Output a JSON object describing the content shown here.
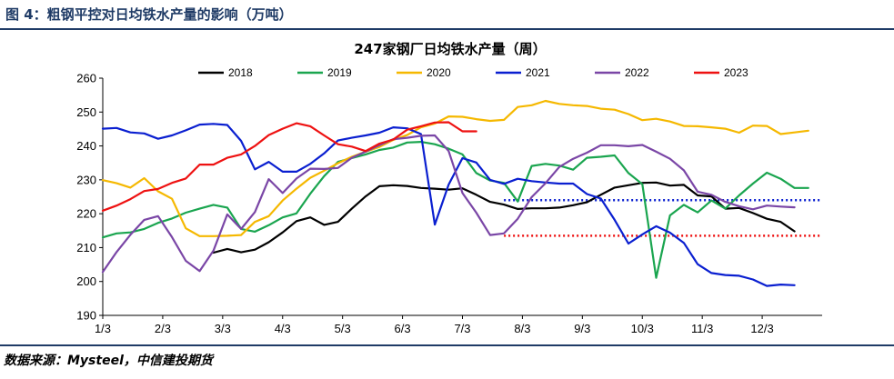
{
  "figure": {
    "title": "图 4：粗钢平控对日均铁水产量的影响（万吨）",
    "source": "数据来源：Mysteel，中信建投期货"
  },
  "chart_data": {
    "type": "line",
    "title": "247家钢厂日均铁水产量（周）",
    "xlabel": "",
    "ylabel": "",
    "x_ticks": [
      "1/3",
      "2/3",
      "3/3",
      "4/3",
      "5/3",
      "6/3",
      "7/3",
      "8/3",
      "9/3",
      "10/3",
      "11/3",
      "12/3"
    ],
    "x_range_week": [
      1,
      53
    ],
    "ylim": [
      190,
      260
    ],
    "y_ticks": [
      190,
      200,
      210,
      220,
      230,
      240,
      250,
      260
    ],
    "grid": false,
    "legend_position": "top",
    "series": [
      {
        "name": "2018",
        "color": "#000000",
        "start_week": 9,
        "values": [
          208.5,
          209.6,
          208.6,
          209.4,
          211.6,
          214.5,
          217.8,
          218.9,
          216.7,
          217.6,
          221.5,
          225.1,
          228.1,
          228.4,
          228.2,
          227.6,
          227.4,
          227.1,
          227.5,
          225.6,
          223.5,
          222.7,
          221.4,
          221.6,
          221.6,
          221.8,
          222.5,
          223.4,
          225.6,
          227.7,
          228.4,
          229.1,
          229.2,
          228.3,
          228.5,
          225.4,
          225.1,
          221.5,
          221.7,
          220.2,
          218.5,
          217.6,
          214.8
        ]
      },
      {
        "name": "2019",
        "color": "#1aa54f",
        "start_week": 1,
        "values": [
          213.0,
          214.2,
          214.5,
          215.5,
          217.3,
          218.6,
          220.3,
          221.5,
          222.6,
          221.8,
          215.5,
          214.7,
          216.6,
          218.9,
          220.1,
          225.9,
          231.1,
          235.3,
          236.4,
          237.5,
          238.8,
          239.5,
          241.0,
          241.2,
          240.5,
          239.2,
          237.5,
          232.0,
          229.8,
          229.1,
          223.6,
          234.1,
          234.7,
          234.2,
          233.0,
          236.5,
          236.8,
          237.2,
          232.0,
          228.7,
          201.1,
          219.5,
          222.6,
          220.4,
          223.9,
          221.5,
          225.4,
          228.9,
          232.1,
          230.3,
          227.6,
          227.6
        ]
      },
      {
        "name": "2020",
        "color": "#f5b800",
        "start_week": 1,
        "values": [
          229.9,
          229.0,
          227.7,
          230.5,
          226.6,
          224.4,
          215.7,
          213.4,
          213.4,
          213.5,
          213.7,
          217.6,
          219.3,
          223.9,
          227.4,
          230.6,
          232.7,
          234.9,
          236.8,
          238.3,
          239.7,
          241.8,
          243.2,
          245.5,
          246.6,
          248.7,
          248.6,
          247.9,
          247.4,
          247.7,
          251.5,
          252.0,
          253.3,
          252.4,
          252.0,
          251.8,
          251.0,
          250.7,
          249.4,
          247.6,
          248.0,
          247.2,
          245.9,
          245.8,
          245.5,
          245.1,
          243.9,
          246.0,
          245.9,
          243.5,
          244.0,
          244.5
        ]
      },
      {
        "name": "2021",
        "color": "#0a1fd0",
        "start_week": 1,
        "values": [
          245.1,
          245.3,
          244.0,
          243.7,
          242.1,
          243.1,
          244.6,
          246.3,
          246.5,
          246.2,
          241.5,
          233.1,
          235.3,
          232.4,
          232.4,
          234.7,
          237.8,
          241.6,
          242.4,
          243.1,
          243.9,
          245.5,
          245.2,
          243.5,
          216.8,
          228.6,
          236.4,
          235.1,
          230.0,
          228.8,
          230.3,
          229.6,
          229.2,
          228.9,
          228.9,
          225.8,
          224.5,
          218.2,
          211.2,
          213.9,
          216.3,
          214.4,
          211.4,
          205.1,
          202.5,
          201.9,
          201.7,
          200.6,
          198.7,
          199.1,
          198.9
        ]
      },
      {
        "name": "2022",
        "color": "#7a46a6",
        "start_week": 1,
        "values": [
          202.8,
          208.7,
          213.8,
          218.2,
          219.3,
          213.1,
          206.1,
          203.1,
          209.1,
          219.8,
          215.5,
          220.5,
          230.2,
          226.1,
          230.4,
          233.3,
          233.2,
          233.5,
          236.5,
          238.3,
          240.2,
          242.0,
          242.4,
          243.0,
          243.1,
          238.5,
          226.1,
          220.3,
          213.7,
          214.2,
          218.5,
          224.9,
          229.0,
          233.8,
          236.2,
          238.0,
          240.2,
          240.2,
          239.9,
          240.3,
          238.3,
          236.2,
          232.8,
          226.5,
          225.6,
          223.5,
          222.2,
          221.3,
          222.4,
          222.1,
          221.9
        ]
      },
      {
        "name": "2023",
        "color": "#ee1111",
        "start_week": 1,
        "values": [
          220.9,
          222.4,
          224.3,
          226.7,
          227.3,
          229.1,
          230.4,
          234.5,
          234.5,
          236.5,
          237.5,
          240.0,
          243.2,
          245.1,
          246.7,
          245.8,
          243.1,
          240.5,
          239.8,
          238.5,
          240.7,
          241.9,
          244.8,
          245.8,
          246.9,
          247.0,
          244.3,
          244.3
        ]
      }
    ],
    "reference_lines": [
      {
        "value": 224.0,
        "color": "#0a1fd0",
        "style": "dotted",
        "from_week": 30,
        "to_week": 53
      },
      {
        "value": 213.5,
        "color": "#ee1111",
        "style": "dotted",
        "from_week": 30,
        "to_week": 53
      }
    ]
  }
}
